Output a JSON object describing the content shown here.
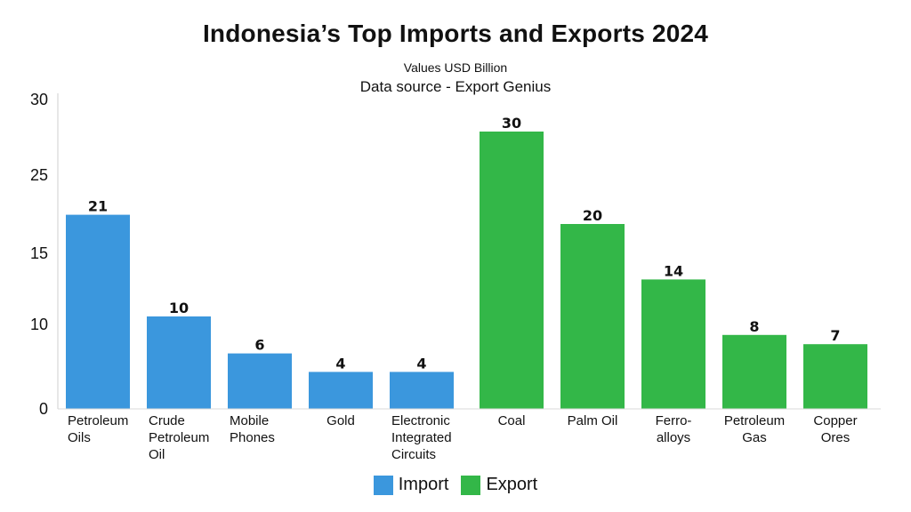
{
  "chart_data": {
    "type": "bar",
    "title": "Indonesia’s Top Imports and Exports 2024",
    "subtitle": "Values USD Billion",
    "source": "Data source - Export Genius",
    "y_ticks": [
      "0",
      "10",
      "15",
      "25",
      "30"
    ],
    "series": [
      {
        "name": "Import",
        "color": "#3b97dd",
        "categories": [
          [
            "Petroleum",
            "Oils"
          ],
          [
            "Crude",
            "Petroleum",
            "Oil"
          ],
          [
            "Mobile",
            "Phones"
          ],
          [
            "Gold"
          ],
          [
            "Electronic",
            "Integrated",
            "Circuits"
          ]
        ],
        "values": [
          21,
          10,
          6,
          4,
          4
        ],
        "data_labels": [
          "21",
          "10",
          "6",
          "4",
          "4"
        ]
      },
      {
        "name": "Export",
        "color": "#33b748",
        "categories": [
          [
            "Coal"
          ],
          [
            "Palm Oil"
          ],
          [
            "Ferro-",
            "alloys"
          ],
          [
            "Petroleum",
            "Gas"
          ],
          [
            "Copper",
            "Ores"
          ]
        ],
        "values": [
          30,
          20,
          14,
          8,
          7
        ],
        "data_labels": [
          "30",
          "20",
          "14",
          "8",
          "7"
        ]
      }
    ],
    "grid": false,
    "legend_position": "bottom-center"
  }
}
